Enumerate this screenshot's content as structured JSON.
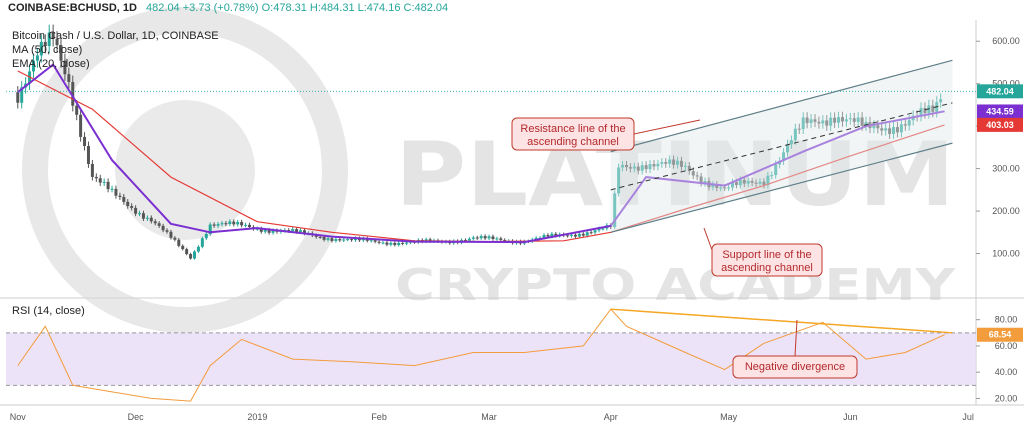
{
  "header": {
    "symbol_line": "COINBASE:BCHUSD, 1D",
    "price_values": "482.04 +3.73 (+0.78%) O:478.31 H:484.31 L:474.16 C:482.04",
    "title": "Bitcoin Cash / U.S. Dollar, 1D, COINBASE",
    "ma_label": "MA (50, close)",
    "ema_label": "EMA (20, close)",
    "rsi_label": "RSI (14, close)"
  },
  "watermark": {
    "line1": "PLATINUM",
    "line2": "CRYPTO ACADEMY"
  },
  "annotations": {
    "resistance": [
      "Resistance line of the",
      "ascending channel"
    ],
    "support": [
      "Support line of the",
      "ascending channel"
    ],
    "divergence": "Negative divergence"
  },
  "colors": {
    "up": "#26a69a",
    "down": "#555555",
    "ma": "#e53935",
    "ema": "#7b2fd1",
    "rsi": "#f39c3c",
    "rsi_band": "#e9dcf7",
    "channel": "#5f7f88",
    "trend": "#f5a623",
    "annotation": "#c0392b"
  },
  "chart_data": [
    {
      "type": "candlestick",
      "title": "Bitcoin Cash / U.S. Dollar, 1D, COINBASE",
      "ylim": [
        0,
        650
      ],
      "y_ticks": [
        100,
        200,
        300,
        400,
        500,
        600
      ],
      "x_tick_labels": [
        "Nov",
        "Dec",
        "2019",
        "Feb",
        "Mar",
        "Apr",
        "May",
        "Jun",
        "Jul"
      ],
      "price_tags": {
        "last": "482.04",
        "ema": "434.59",
        "ma": "403.03"
      },
      "last_price": 482.04,
      "series": [
        {
          "name": "MA (50, close)",
          "x": [
            "2018-11-01",
            "2018-11-20",
            "2018-12-10",
            "2019-01-01",
            "2019-01-20",
            "2019-02-10",
            "2019-03-01",
            "2019-03-20",
            "2019-04-01",
            "2019-04-20",
            "2019-05-10",
            "2019-06-01",
            "2019-06-25"
          ],
          "values": [
            530,
            440,
            280,
            175,
            150,
            130,
            128,
            130,
            150,
            205,
            260,
            330,
            403
          ]
        },
        {
          "name": "EMA (20, close)",
          "x": [
            "2018-11-01",
            "2018-11-10",
            "2018-11-25",
            "2018-12-10",
            "2018-12-20",
            "2019-01-01",
            "2019-01-20",
            "2019-02-10",
            "2019-03-10",
            "2019-04-01",
            "2019-04-10",
            "2019-04-30",
            "2019-05-20",
            "2019-06-05",
            "2019-06-25"
          ],
          "values": [
            480,
            545,
            320,
            170,
            150,
            160,
            140,
            128,
            127,
            165,
            280,
            260,
            340,
            400,
            435
          ]
        }
      ],
      "channel": {
        "resistance": {
          "x": [
            "2019-04-01",
            "2019-06-27"
          ],
          "y": [
            340,
            555
          ]
        },
        "support": {
          "x": [
            "2019-04-01",
            "2019-06-27"
          ],
          "y": [
            150,
            360
          ]
        },
        "midline": {
          "x": [
            "2019-04-01",
            "2019-06-27"
          ],
          "y": [
            250,
            455
          ]
        }
      }
    },
    {
      "type": "line",
      "title": "RSI (14, close)",
      "ylim": [
        15,
        95
      ],
      "y_ticks": [
        20,
        40,
        60,
        80
      ],
      "band": [
        30,
        70
      ],
      "last_value": 68.54,
      "last_value_label": "68.54",
      "series": [
        {
          "name": "RSI (14, close)",
          "x": [
            "2018-11-01",
            "2018-11-08",
            "2018-11-15",
            "2018-11-25",
            "2018-12-05",
            "2018-12-15",
            "2018-12-20",
            "2018-12-28",
            "2019-01-10",
            "2019-01-25",
            "2019-02-10",
            "2019-02-25",
            "2019-03-10",
            "2019-03-25",
            "2019-04-01",
            "2019-04-05",
            "2019-04-20",
            "2019-04-30",
            "2019-05-10",
            "2019-05-25",
            "2019-06-05",
            "2019-06-15",
            "2019-06-25"
          ],
          "values": [
            45,
            75,
            30,
            25,
            20,
            18,
            45,
            65,
            50,
            48,
            45,
            55,
            55,
            60,
            88,
            75,
            55,
            42,
            62,
            78,
            50,
            55,
            68.54
          ]
        }
      ],
      "divergence_line": {
        "x": [
          "2019-04-01",
          "2019-06-27"
        ],
        "y": [
          88,
          70
        ]
      }
    }
  ]
}
